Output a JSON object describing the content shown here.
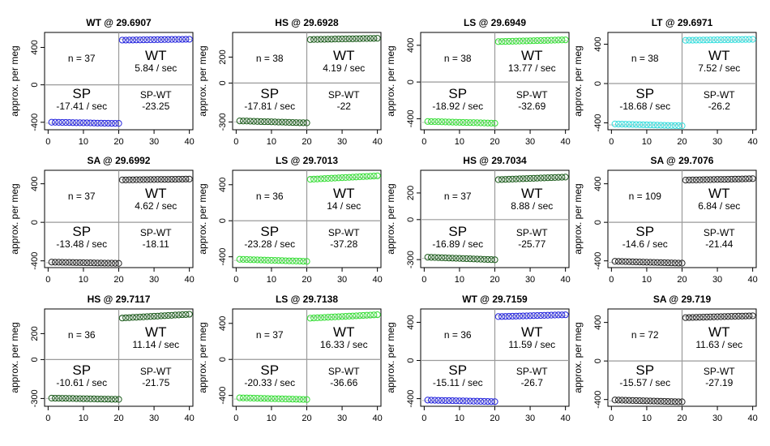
{
  "figure": {
    "ylabel": "approx. per meg",
    "x_ticks": [
      0,
      10,
      20,
      30,
      40
    ]
  },
  "colors": {
    "WT": "#2222dd",
    "HS": "#1a5a1a",
    "LS": "#33dd33",
    "LT": "#33dddd",
    "SA": "#222222"
  },
  "chart_data": [
    {
      "type": "scatter",
      "title": "WT @ 29.6907",
      "group": "WT",
      "ylim": [
        -480,
        560
      ],
      "y_ticks": [
        -400,
        0,
        400
      ],
      "sp_level": -410,
      "wt_level": 485,
      "n_label": "n = 37",
      "wt": {
        "label": "WT",
        "value": "5.84 / sec"
      },
      "sp": {
        "label": "SP",
        "value": "-17.41 / sec"
      },
      "diff": {
        "label": "SP-WT",
        "value": "-23.25"
      },
      "x": [
        1,
        2,
        3,
        4,
        5,
        6,
        7,
        8,
        9,
        10,
        11,
        12,
        13,
        14,
        15,
        16,
        17,
        18,
        19,
        20,
        21,
        22,
        23,
        24,
        25,
        26,
        27,
        28,
        29,
        30,
        31,
        32,
        33,
        34,
        35,
        36,
        37,
        38,
        39,
        40
      ],
      "y": [
        -400,
        -400,
        -401,
        -402,
        -402,
        -403,
        -404,
        -405,
        -405,
        -406,
        -406,
        -407,
        -408,
        -409,
        -409,
        -410,
        -410,
        -411,
        -412,
        -412,
        478,
        478,
        479,
        479,
        480,
        480,
        481,
        481,
        482,
        482,
        483,
        483,
        484,
        484,
        485,
        485,
        486,
        486,
        487,
        487
      ]
    },
    {
      "type": "scatter",
      "title": "HS @ 29.6928",
      "group": "HS",
      "ylim": [
        -360,
        390
      ],
      "y_ticks": [
        -300,
        0,
        200
      ],
      "sp_level": -300,
      "wt_level": 340,
      "n_label": "n = 38",
      "wt": {
        "label": "WT",
        "value": "4.19 / sec"
      },
      "sp": {
        "label": "SP",
        "value": "-17.81 / sec"
      },
      "diff": {
        "label": "SP-WT",
        "value": "-22"
      },
      "x": [
        1,
        2,
        3,
        4,
        5,
        6,
        7,
        8,
        9,
        10,
        11,
        12,
        13,
        14,
        15,
        16,
        17,
        18,
        19,
        20,
        21,
        22,
        23,
        24,
        25,
        26,
        27,
        28,
        29,
        30,
        31,
        32,
        33,
        34,
        35,
        36,
        37,
        38,
        39,
        40
      ],
      "y": [
        -292,
        -293,
        -293,
        -294,
        -295,
        -296,
        -297,
        -298,
        -298,
        -299,
        -300,
        -301,
        -301,
        -302,
        -303,
        -304,
        -305,
        -306,
        -306,
        -307,
        335,
        336,
        336,
        337,
        337,
        338,
        338,
        339,
        339,
        340,
        340,
        341,
        341,
        342,
        342,
        343,
        343,
        344,
        344,
        345
      ]
    },
    {
      "type": "scatter",
      "title": "LS @ 29.6949",
      "group": "LS",
      "ylim": [
        -520,
        540
      ],
      "y_ticks": [
        -400,
        0,
        400
      ],
      "sp_level": -440,
      "wt_level": 450,
      "n_label": "n = 38",
      "wt": {
        "label": "WT",
        "value": "13.77 / sec"
      },
      "sp": {
        "label": "SP",
        "value": "-18.92 / sec"
      },
      "diff": {
        "label": "SP-WT",
        "value": "-32.69"
      },
      "x": [
        1,
        2,
        3,
        4,
        5,
        6,
        7,
        8,
        9,
        10,
        11,
        12,
        13,
        14,
        15,
        16,
        17,
        18,
        19,
        20,
        21,
        22,
        23,
        24,
        25,
        26,
        27,
        28,
        29,
        30,
        31,
        32,
        33,
        34,
        35,
        36,
        37,
        38,
        39,
        40
      ],
      "y": [
        -430,
        -431,
        -432,
        -433,
        -434,
        -435,
        -436,
        -437,
        -438,
        -439,
        -440,
        -441,
        -442,
        -443,
        -444,
        -445,
        -446,
        -447,
        -448,
        -449,
        440,
        441,
        442,
        443,
        444,
        445,
        446,
        447,
        448,
        449,
        450,
        451,
        452,
        453,
        454,
        455,
        456,
        457,
        458,
        459
      ]
    },
    {
      "type": "scatter",
      "title": "LT @ 29.6971",
      "group": "LT",
      "ylim": [
        -470,
        520
      ],
      "y_ticks": [
        -400,
        0,
        400
      ],
      "sp_level": -420,
      "wt_level": 445,
      "n_label": "n = 38",
      "wt": {
        "label": "WT",
        "value": "7.52 / sec"
      },
      "sp": {
        "label": "SP",
        "value": "-18.68 / sec"
      },
      "diff": {
        "label": "SP-WT",
        "value": "-26.2"
      },
      "x": [
        1,
        2,
        3,
        4,
        5,
        6,
        7,
        8,
        9,
        10,
        11,
        12,
        13,
        14,
        15,
        16,
        17,
        18,
        19,
        20,
        21,
        22,
        23,
        24,
        25,
        26,
        27,
        28,
        29,
        30,
        31,
        32,
        33,
        34,
        35,
        36,
        37,
        38,
        39,
        40
      ],
      "y": [
        -411,
        -412,
        -413,
        -414,
        -415,
        -416,
        -417,
        -418,
        -419,
        -420,
        -421,
        -422,
        -423,
        -424,
        -425,
        -426,
        -427,
        -428,
        -429,
        -430,
        440,
        441,
        441,
        442,
        442,
        443,
        443,
        444,
        444,
        445,
        445,
        446,
        446,
        447,
        447,
        448,
        448,
        449,
        449,
        450
      ]
    },
    {
      "type": "scatter",
      "title": "SA @ 29.6992",
      "group": "SA",
      "ylim": [
        -470,
        540
      ],
      "y_ticks": [
        -400,
        0,
        400
      ],
      "sp_level": -420,
      "wt_level": 445,
      "n_label": "n = 37",
      "wt": {
        "label": "WT",
        "value": "4.62 / sec"
      },
      "sp": {
        "label": "SP",
        "value": "-13.48 / sec"
      },
      "diff": {
        "label": "SP-WT",
        "value": "-18.11"
      },
      "x": [
        1,
        2,
        3,
        4,
        5,
        6,
        7,
        8,
        9,
        10,
        11,
        12,
        13,
        14,
        15,
        16,
        17,
        18,
        19,
        20,
        21,
        22,
        23,
        24,
        25,
        26,
        27,
        28,
        29,
        30,
        31,
        32,
        33,
        34,
        35,
        36,
        37,
        38,
        39,
        40
      ],
      "y": [
        -413,
        -414,
        -414,
        -415,
        -416,
        -416,
        -417,
        -418,
        -418,
        -419,
        -420,
        -420,
        -421,
        -422,
        -422,
        -423,
        -424,
        -424,
        -425,
        -426,
        440,
        440,
        441,
        441,
        442,
        442,
        443,
        443,
        444,
        444,
        445,
        445,
        446,
        446,
        447,
        447,
        448,
        448,
        449,
        449
      ]
    },
    {
      "type": "scatter",
      "title": "LS @ 29.7013",
      "group": "LS",
      "ylim": [
        -520,
        560
      ],
      "y_ticks": [
        -400,
        0,
        400
      ],
      "sp_level": -440,
      "wt_level": 480,
      "n_label": "n = 36",
      "wt": {
        "label": "WT",
        "value": "14 / sec"
      },
      "sp": {
        "label": "SP",
        "value": "-23.28 / sec"
      },
      "diff": {
        "label": "SP-WT",
        "value": "-37.28"
      },
      "x": [
        1,
        2,
        3,
        4,
        5,
        6,
        7,
        8,
        9,
        10,
        11,
        12,
        13,
        14,
        15,
        16,
        17,
        18,
        19,
        20,
        21,
        22,
        23,
        24,
        25,
        26,
        27,
        28,
        29,
        30,
        31,
        32,
        33,
        34,
        35,
        36,
        37,
        38,
        39,
        40
      ],
      "y": [
        -428,
        -429,
        -430,
        -432,
        -433,
        -434,
        -435,
        -436,
        -438,
        -439,
        -440,
        -441,
        -442,
        -444,
        -445,
        -446,
        -447,
        -448,
        -450,
        -451,
        460,
        462,
        464,
        466,
        468,
        470,
        472,
        474,
        476,
        478,
        480,
        482,
        484,
        486,
        488,
        490,
        492,
        494,
        496,
        498
      ]
    },
    {
      "type": "scatter",
      "title": "HS @ 29.7034",
      "group": "HS",
      "ylim": [
        -360,
        370
      ],
      "y_ticks": [
        -300,
        0,
        200
      ],
      "sp_level": -290,
      "wt_level": 310,
      "n_label": "n = 37",
      "wt": {
        "label": "WT",
        "value": "8.88 / sec"
      },
      "sp": {
        "label": "SP",
        "value": "-16.89 / sec"
      },
      "diff": {
        "label": "SP-WT",
        "value": "-25.77"
      },
      "x": [
        1,
        2,
        3,
        4,
        5,
        6,
        7,
        8,
        9,
        10,
        11,
        12,
        13,
        14,
        15,
        16,
        17,
        18,
        19,
        20,
        21,
        22,
        23,
        24,
        25,
        26,
        27,
        28,
        29,
        30,
        31,
        32,
        33,
        34,
        35,
        36,
        37,
        38,
        39,
        40
      ],
      "y": [
        -282,
        -283,
        -284,
        -285,
        -286,
        -287,
        -288,
        -289,
        -290,
        -291,
        -292,
        -293,
        -294,
        -295,
        -296,
        -297,
        -298,
        -299,
        -300,
        -301,
        300,
        301,
        302,
        303,
        304,
        305,
        306,
        307,
        308,
        309,
        310,
        311,
        312,
        313,
        314,
        315,
        316,
        317,
        318,
        319
      ]
    },
    {
      "type": "scatter",
      "title": "SA @ 29.7076",
      "group": "SA",
      "ylim": [
        -470,
        540
      ],
      "y_ticks": [
        -400,
        0,
        400
      ],
      "sp_level": -415,
      "wt_level": 445,
      "n_label": "n = 109",
      "wt": {
        "label": "WT",
        "value": "6.84 / sec"
      },
      "sp": {
        "label": "SP",
        "value": "-14.6 / sec"
      },
      "diff": {
        "label": "SP-WT",
        "value": "-21.44"
      },
      "x": [
        1,
        2,
        3,
        4,
        5,
        6,
        7,
        8,
        9,
        10,
        11,
        12,
        13,
        14,
        15,
        16,
        17,
        18,
        19,
        20,
        21,
        22,
        23,
        24,
        25,
        26,
        27,
        28,
        29,
        30,
        31,
        32,
        33,
        34,
        35,
        36,
        37,
        38,
        39,
        40
      ],
      "y": [
        -405,
        -406,
        -407,
        -408,
        -409,
        -410,
        -411,
        -412,
        -413,
        -414,
        -415,
        -416,
        -417,
        -418,
        -419,
        -420,
        -421,
        -422,
        -423,
        -424,
        438,
        439,
        440,
        440,
        441,
        442,
        443,
        443,
        444,
        445,
        446,
        446,
        447,
        448,
        449,
        449,
        450,
        451,
        452,
        453
      ]
    },
    {
      "type": "scatter",
      "title": "HS @ 29.7117",
      "group": "HS",
      "ylim": [
        -360,
        390
      ],
      "y_ticks": [
        -300,
        0,
        200
      ],
      "sp_level": -300,
      "wt_level": 335,
      "n_label": "n = 36",
      "wt": {
        "label": "WT",
        "value": "11.14 / sec"
      },
      "sp": {
        "label": "SP",
        "value": "-10.61 / sec"
      },
      "diff": {
        "label": "SP-WT",
        "value": "-21.75"
      },
      "x": [
        1,
        2,
        3,
        4,
        5,
        6,
        7,
        8,
        9,
        10,
        11,
        12,
        13,
        14,
        15,
        16,
        17,
        18,
        19,
        20,
        21,
        22,
        23,
        24,
        25,
        26,
        27,
        28,
        29,
        30,
        31,
        32,
        33,
        34,
        35,
        36,
        37,
        38,
        39,
        40
      ],
      "y": [
        -297,
        -298,
        -298,
        -299,
        -299,
        -300,
        -300,
        -301,
        -301,
        -302,
        -302,
        -303,
        -303,
        -304,
        -304,
        -305,
        -305,
        -306,
        -306,
        -307,
        320,
        322,
        323,
        325,
        326,
        328,
        329,
        331,
        332,
        334,
        335,
        337,
        338,
        340,
        341,
        343,
        344,
        346,
        347,
        349
      ]
    },
    {
      "type": "scatter",
      "title": "LS @ 29.7138",
      "group": "LS",
      "ylim": [
        -520,
        560
      ],
      "y_ticks": [
        -400,
        0,
        400
      ],
      "sp_level": -440,
      "wt_level": 470,
      "n_label": "n = 37",
      "wt": {
        "label": "WT",
        "value": "16.33 / sec"
      },
      "sp": {
        "label": "SP",
        "value": "-20.33 / sec"
      },
      "diff": {
        "label": "SP-WT",
        "value": "-36.66"
      },
      "x": [
        1,
        2,
        3,
        4,
        5,
        6,
        7,
        8,
        9,
        10,
        11,
        12,
        13,
        14,
        15,
        16,
        17,
        18,
        19,
        20,
        21,
        22,
        23,
        24,
        25,
        26,
        27,
        28,
        29,
        30,
        31,
        32,
        33,
        34,
        35,
        36,
        37,
        38,
        39,
        40
      ],
      "y": [
        -426,
        -427,
        -428,
        -429,
        -430,
        -431,
        -432,
        -433,
        -434,
        -435,
        -436,
        -437,
        -438,
        -439,
        -440,
        -441,
        -442,
        -443,
        -444,
        -445,
        458,
        460,
        462,
        464,
        466,
        468,
        470,
        472,
        474,
        476,
        478,
        480,
        482,
        484,
        486,
        488,
        490,
        492,
        494,
        496
      ]
    },
    {
      "type": "scatter",
      "title": "WT @ 29.7159",
      "group": "WT",
      "ylim": [
        -480,
        540
      ],
      "y_ticks": [
        -400,
        0,
        400
      ],
      "sp_level": -420,
      "wt_level": 470,
      "n_label": "n = 36",
      "wt": {
        "label": "WT",
        "value": "11.59 / sec"
      },
      "sp": {
        "label": "SP",
        "value": "-15.11 / sec"
      },
      "diff": {
        "label": "SP-WT",
        "value": "-26.7"
      },
      "x": [
        1,
        2,
        3,
        4,
        5,
        6,
        7,
        8,
        9,
        10,
        11,
        12,
        13,
        14,
        15,
        16,
        17,
        18,
        19,
        20,
        21,
        22,
        23,
        24,
        25,
        26,
        27,
        28,
        29,
        30,
        31,
        32,
        33,
        34,
        35,
        36,
        37,
        38,
        39,
        40
      ],
      "y": [
        -415,
        -416,
        -417,
        -418,
        -419,
        -420,
        -420,
        -421,
        -422,
        -423,
        -424,
        -425,
        -426,
        -427,
        -427,
        -428,
        -429,
        -430,
        -431,
        -432,
        460,
        461,
        462,
        463,
        464,
        465,
        466,
        467,
        468,
        469,
        470,
        471,
        472,
        473,
        474,
        475,
        476,
        477,
        478,
        479
      ]
    },
    {
      "type": "scatter",
      "title": "SA @ 29.719",
      "group": "SA",
      "ylim": [
        -470,
        540
      ],
      "y_ticks": [
        -400,
        0,
        400
      ],
      "sp_level": -415,
      "wt_level": 460,
      "n_label": "n = 72",
      "wt": {
        "label": "WT",
        "value": "11.63 / sec"
      },
      "sp": {
        "label": "SP",
        "value": "-15.57 / sec"
      },
      "diff": {
        "label": "SP-WT",
        "value": "-27.19"
      },
      "x": [
        1,
        2,
        3,
        4,
        5,
        6,
        7,
        8,
        9,
        10,
        11,
        12,
        13,
        14,
        15,
        16,
        17,
        18,
        19,
        20,
        21,
        22,
        23,
        24,
        25,
        26,
        27,
        28,
        29,
        30,
        31,
        32,
        33,
        34,
        35,
        36,
        37,
        38,
        39,
        40
      ],
      "y": [
        -405,
        -406,
        -407,
        -408,
        -409,
        -410,
        -411,
        -412,
        -413,
        -414,
        -415,
        -416,
        -417,
        -418,
        -419,
        -420,
        -421,
        -422,
        -423,
        -424,
        450,
        451,
        452,
        453,
        454,
        455,
        456,
        457,
        458,
        459,
        460,
        461,
        462,
        463,
        464,
        465,
        466,
        467,
        468,
        469
      ]
    }
  ]
}
